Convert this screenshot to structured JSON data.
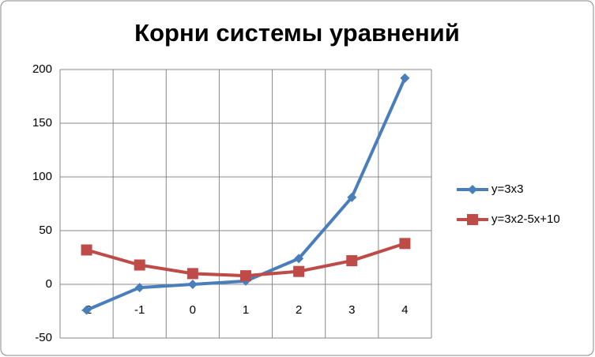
{
  "chart_data": {
    "type": "line",
    "title": "Корни системы уравнений",
    "categories": [
      -2,
      -1,
      0,
      1,
      2,
      3,
      4
    ],
    "series": [
      {
        "name": "y=3x3",
        "color": "#4a7ebb",
        "marker": "diamond",
        "values": [
          -24,
          -3,
          0,
          3,
          24,
          81,
          192
        ]
      },
      {
        "name": "y=3x2-5x+10",
        "color": "#be4b48",
        "marker": "square",
        "values": [
          32,
          18,
          10,
          8,
          12,
          22,
          38
        ]
      }
    ],
    "ylim": [
      -50,
      200
    ],
    "yticks": [
      -50,
      0,
      50,
      100,
      150,
      200
    ],
    "grid": true,
    "legend": "right"
  }
}
